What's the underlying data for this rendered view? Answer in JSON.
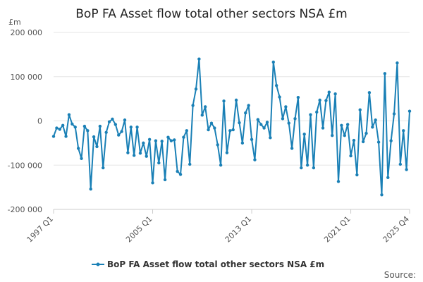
{
  "chart_data": {
    "type": "line",
    "title": "BoP FA Asset flow total other sectors NSA £m",
    "unit_label": "£m",
    "source_label": "Source:",
    "x_start": "1997 Q1",
    "x_end": "2025 Q4",
    "x_tick_labels": [
      "1997 Q1",
      "2005 Q1",
      "2013 Q1",
      "2021 Q1",
      "2025 Q4"
    ],
    "x_tick_indices": [
      0,
      32,
      64,
      96,
      115
    ],
    "y_ticks": [
      200000,
      100000,
      0,
      -100000,
      -200000
    ],
    "y_tick_labels": [
      "200 000",
      "100 000",
      "0",
      "-100 000",
      "-200 000"
    ],
    "ylim": [
      -200000,
      200000
    ],
    "grid": true,
    "legend_position": "bottom",
    "series": [
      {
        "name": "BoP FA Asset flow total other sectors NSA £m",
        "color": "#1a80b6",
        "values": [
          -35000,
          -16000,
          -19000,
          -10000,
          -35000,
          14000,
          -7000,
          -14000,
          -62000,
          -85000,
          -12000,
          -22000,
          -154000,
          -36000,
          -58000,
          -12000,
          -106000,
          -26000,
          -2000,
          4000,
          -8000,
          -32000,
          -24000,
          2000,
          -72000,
          -14000,
          -78000,
          -14000,
          -73000,
          -50000,
          -80000,
          -42000,
          -140000,
          -45000,
          -95000,
          -46000,
          -133000,
          -37000,
          -45000,
          -43000,
          -114000,
          -121000,
          -37000,
          -22000,
          -98000,
          35000,
          72000,
          140000,
          13000,
          32000,
          -20000,
          -5000,
          -16000,
          -54000,
          -100000,
          45000,
          -72000,
          -22000,
          -20000,
          47000,
          -4000,
          -50000,
          18000,
          35000,
          -42000,
          -88000,
          3000,
          -8000,
          -16000,
          -3000,
          -38000,
          133000,
          80000,
          54000,
          5000,
          32000,
          -5000,
          -62000,
          5000,
          53000,
          -106000,
          -30000,
          -100000,
          14000,
          -106000,
          20000,
          47000,
          -16000,
          46000,
          65000,
          -33000,
          61000,
          -137000,
          -10000,
          -33000,
          -8000,
          -79000,
          -44000,
          -122000,
          25000,
          -47000,
          -28000,
          64000,
          -14000,
          2000,
          -48000,
          -167000,
          107000,
          -128000,
          -45000,
          16000,
          131000,
          -98000,
          -22000,
          -110000,
          22000
        ]
      }
    ]
  }
}
